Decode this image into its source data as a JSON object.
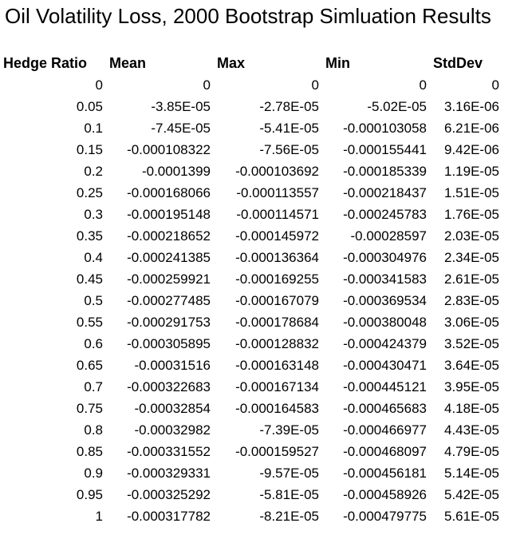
{
  "title": "Oil Volatility Loss, 2000 Bootstrap Simluation Results",
  "table": {
    "headers": [
      "Hedge Ratio",
      "Mean",
      "Max",
      "Min",
      "StdDev"
    ],
    "rows": [
      [
        "0",
        "0",
        "0",
        "0",
        "0"
      ],
      [
        "0.05",
        "-3.85E-05",
        "-2.78E-05",
        "-5.02E-05",
        "3.16E-06"
      ],
      [
        "0.1",
        "-7.45E-05",
        "-5.41E-05",
        "-0.000103058",
        "6.21E-06"
      ],
      [
        "0.15",
        "-0.000108322",
        "-7.56E-05",
        "-0.000155441",
        "9.42E-06"
      ],
      [
        "0.2",
        "-0.0001399",
        "-0.000103692",
        "-0.000185339",
        "1.19E-05"
      ],
      [
        "0.25",
        "-0.000168066",
        "-0.000113557",
        "-0.000218437",
        "1.51E-05"
      ],
      [
        "0.3",
        "-0.000195148",
        "-0.000114571",
        "-0.000245783",
        "1.76E-05"
      ],
      [
        "0.35",
        "-0.000218652",
        "-0.000145972",
        "-0.00028597",
        "2.03E-05"
      ],
      [
        "0.4",
        "-0.000241385",
        "-0.000136364",
        "-0.000304976",
        "2.34E-05"
      ],
      [
        "0.45",
        "-0.000259921",
        "-0.000169255",
        "-0.000341583",
        "2.61E-05"
      ],
      [
        "0.5",
        "-0.000277485",
        "-0.000167079",
        "-0.000369534",
        "2.83E-05"
      ],
      [
        "0.55",
        "-0.000291753",
        "-0.000178684",
        "-0.000380048",
        "3.06E-05"
      ],
      [
        "0.6",
        "-0.000305895",
        "-0.000128832",
        "-0.000424379",
        "3.52E-05"
      ],
      [
        "0.65",
        "-0.00031516",
        "-0.000163148",
        "-0.000430471",
        "3.64E-05"
      ],
      [
        "0.7",
        "-0.000322683",
        "-0.000167134",
        "-0.000445121",
        "3.95E-05"
      ],
      [
        "0.75",
        "-0.00032854",
        "-0.000164583",
        "-0.000465683",
        "4.18E-05"
      ],
      [
        "0.8",
        "-0.00032982",
        "-7.39E-05",
        "-0.000466977",
        "4.43E-05"
      ],
      [
        "0.85",
        "-0.000331552",
        "-0.000159527",
        "-0.000468097",
        "4.79E-05"
      ],
      [
        "0.9",
        "-0.000329331",
        "-9.57E-05",
        "-0.000456181",
        "5.14E-05"
      ],
      [
        "0.95",
        "-0.000325292",
        "-5.81E-05",
        "-0.000458926",
        "5.42E-05"
      ],
      [
        "1",
        "-0.000317782",
        "-8.21E-05",
        "-0.000479775",
        "5.61E-05"
      ]
    ]
  }
}
